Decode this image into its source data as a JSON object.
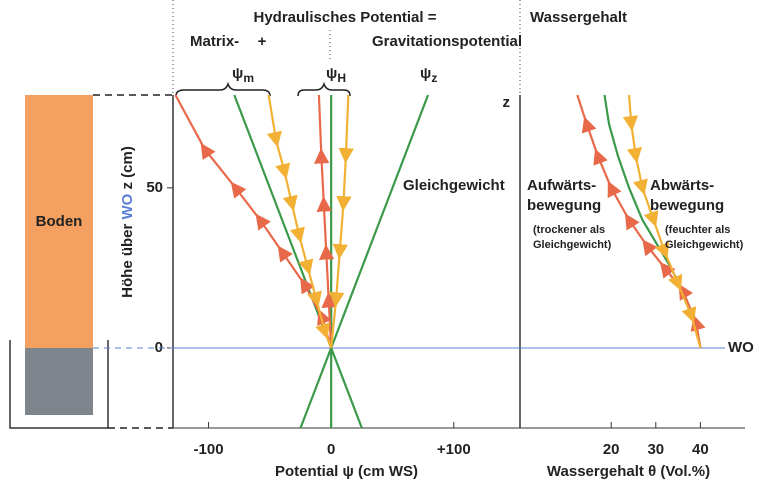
{
  "chart_data": [
    {
      "type": "line",
      "title": "Hydraulisches Potential =",
      "equation_terms": [
        "Matrix-",
        "+",
        "Gravitationspotential"
      ],
      "xlabel": "Potential  ψ (cm WS)",
      "ylabel": "Höhe über WO z (cm)",
      "xlim": [
        -129,
        154
      ],
      "ylim": [
        -25,
        79
      ],
      "xticks": [
        -100,
        0,
        {
          "value": 100,
          "label": "+100"
        }
      ],
      "yticks": [
        0,
        50
      ],
      "reference_line": {
        "y": 0,
        "label": "WO",
        "color": "#5b7fd6"
      },
      "soil_label": "Boden",
      "annotations": [
        {
          "text": "Gleichgewicht",
          "color": "#3a9a4a"
        }
      ],
      "series": [
        {
          "name": "ψz",
          "color": "#3a9a4a",
          "x": [
            -25,
            79
          ],
          "y": [
            -25,
            79
          ]
        },
        {
          "name": "ψm",
          "color": "#3a9a4a",
          "x": [
            25,
            -79
          ],
          "y": [
            -25,
            79
          ]
        },
        {
          "name": "ψH",
          "color": "#3a9a4a",
          "x": [
            0,
            0
          ],
          "y": [
            -25,
            79
          ]
        },
        {
          "color": "#e8694a",
          "x": [
            0,
            -8,
            -22,
            -40,
            -58,
            -78,
            -103,
            -127
          ],
          "y": [
            0,
            10,
            20,
            30,
            40,
            50,
            62,
            79
          ]
        },
        {
          "color": "#e8694a",
          "x": [
            0,
            -2,
            -4,
            -6,
            -8,
            -10
          ],
          "y": [
            0,
            15,
            30,
            45,
            60,
            79
          ]
        },
        {
          "color": "#f2b134",
          "x": [
            -51,
            -45,
            -38,
            -32,
            -26,
            -19,
            -12,
            -5,
            0
          ],
          "y": [
            79,
            65,
            55,
            45,
            35,
            25,
            15,
            5,
            0
          ]
        },
        {
          "color": "#f2b134",
          "x": [
            14,
            12,
            10,
            7,
            4,
            0
          ],
          "y": [
            79,
            60,
            45,
            30,
            15,
            0
          ]
        }
      ]
    },
    {
      "type": "line",
      "title": "Wassergehalt",
      "xlabel": "Wassergehalt  θ (Vol.%)",
      "ylabel": "z",
      "xlim": [
        0,
        50
      ],
      "ylim": [
        -25,
        79
      ],
      "xticks": [
        20,
        30,
        40
      ],
      "series": [
        {
          "color": "#3a9a4a",
          "x": [
            40,
            39,
            36,
            33,
            30,
            27,
            24,
            21.5,
            19.5,
            18.5
          ],
          "y": [
            0,
            8,
            18,
            26,
            33,
            40,
            50,
            60,
            70,
            79
          ]
        },
        {
          "color": "#e8694a",
          "label_lines": [
            "Aufwärts-",
            "bewegung"
          ],
          "note_lines": [
            "(trockener als",
            "Gleichgewicht)"
          ],
          "x": [
            40,
            39,
            36,
            32,
            28,
            24,
            20,
            17,
            14.5,
            12.4
          ],
          "y": [
            0,
            8,
            18,
            25,
            32,
            40,
            50,
            60,
            70,
            79
          ]
        },
        {
          "color": "#f2b134",
          "label_lines": [
            "Abwärts-",
            "bewegung"
          ],
          "note_lines": [
            "(feuchter als",
            "Gleichgewicht)"
          ],
          "x": [
            24,
            24.5,
            25.5,
            27,
            29.5,
            32,
            35,
            38,
            40
          ],
          "y": [
            79,
            70,
            60,
            50,
            40,
            30,
            20,
            10,
            0
          ]
        }
      ]
    }
  ]
}
